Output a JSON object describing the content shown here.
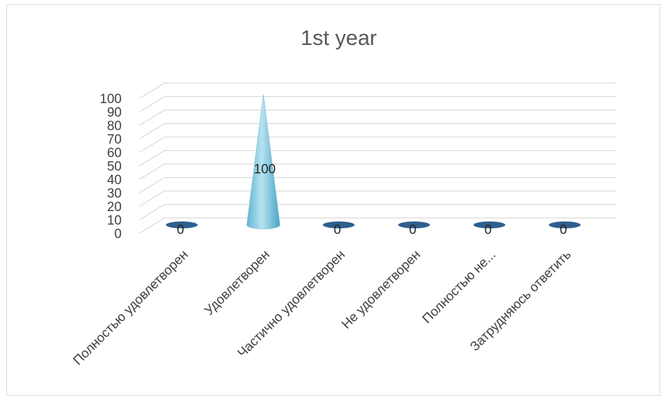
{
  "chart_data": {
    "type": "bar",
    "shape": "cone",
    "title": "1st year",
    "categories": [
      "Полностью удовлетворен",
      "Удовлетворен",
      "Частично удовлетворен",
      "Не удовлетворен",
      "Полностью не...",
      "Затрудняюсь ответить"
    ],
    "values": [
      0,
      100,
      0,
      0,
      0,
      0
    ],
    "data_labels": [
      "0",
      "100",
      "0",
      "0",
      "0",
      "0"
    ],
    "ylim": [
      0,
      100
    ],
    "y_ticks": [
      "0",
      "10",
      "20",
      "30",
      "40",
      "50",
      "60",
      "70",
      "80",
      "90",
      "100"
    ],
    "grid": true,
    "legend": "none",
    "colors": {
      "cone_light": "#b7e3f1",
      "cone_dark": "#4aa3c3",
      "base_flat": "#2f5f8e",
      "gridline": "#d9d9d9",
      "text": "#404040"
    }
  }
}
